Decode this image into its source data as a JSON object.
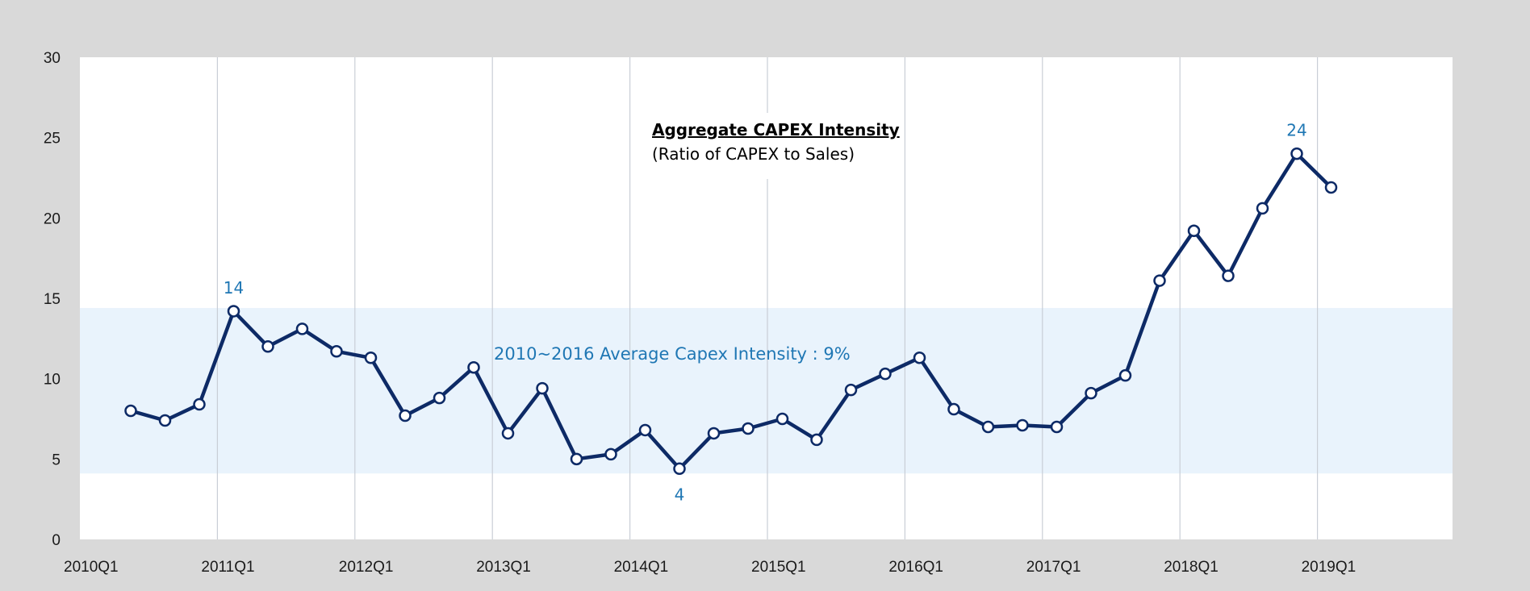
{
  "chart_data": {
    "type": "line",
    "title": "Aggregate CAPEX Intensity",
    "subtitle": "(Ratio of CAPEX to Sales)",
    "xlabel": "",
    "ylabel": "",
    "ylim": [
      0,
      30
    ],
    "yticks": [
      0,
      5,
      10,
      15,
      20,
      25,
      30
    ],
    "xticks": [
      "2010Q1",
      "2011Q1",
      "2012Q1",
      "2013Q1",
      "2014Q1",
      "2015Q1",
      "2016Q1",
      "2017Q1",
      "2018Q1",
      "2019Q1"
    ],
    "grid": "vertical lines at year starts",
    "legend": "none",
    "band": {
      "from": 4.1,
      "to": 14.4,
      "label": "2010~2016 Average Capex Intensity : 9%",
      "color": "#e9f3fc"
    },
    "series": [
      {
        "color": "#0d2a66",
        "values": [
          8.0,
          7.4,
          8.4,
          14.2,
          12.0,
          13.1,
          11.7,
          11.3,
          7.7,
          8.8,
          10.7,
          6.6,
          9.4,
          5.0,
          5.3,
          6.8,
          4.4,
          6.6,
          6.9,
          7.5,
          6.2,
          9.3,
          10.3,
          11.3,
          8.1,
          7.0,
          7.1,
          7.0,
          9.1,
          10.2,
          16.1,
          19.2,
          16.4,
          20.6,
          24.0,
          21.9
        ]
      }
    ],
    "data_labels": [
      {
        "index": 3,
        "text": "14",
        "position": "above"
      },
      {
        "index": 16,
        "text": "4",
        "position": "below"
      },
      {
        "index": 34,
        "text": "24",
        "position": "above"
      }
    ]
  }
}
